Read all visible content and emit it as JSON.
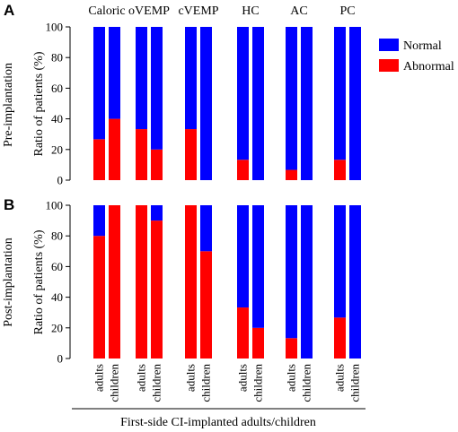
{
  "figure": {
    "panel_letters": [
      "A",
      "B"
    ],
    "xlabel": "First-side CI-implanted adults/children",
    "legend": [
      {
        "label": "Normal",
        "color": "#0000ff"
      },
      {
        "label": "Abnormal",
        "color": "#ff0000"
      }
    ]
  },
  "chart_data": [
    {
      "type": "bar",
      "stacked": true,
      "panel": "A",
      "row_label": "Pre-implantation",
      "ylabel": "Ratio of patients (%)",
      "ylim": [
        0,
        100
      ],
      "yticks": [
        0,
        20,
        40,
        60,
        80,
        100
      ],
      "groups": [
        "Caloric",
        "oVEMP",
        "cVEMP",
        "HC",
        "AC",
        "PC"
      ],
      "subcategories": [
        "adults",
        "children"
      ],
      "series": [
        {
          "name": "Abnormal",
          "color": "#ff0000",
          "values": [
            [
              26.7,
              40
            ],
            [
              33.3,
              20
            ],
            [
              33.3,
              0
            ],
            [
              13.3,
              0
            ],
            [
              6.7,
              0
            ],
            [
              13.3,
              0
            ]
          ]
        },
        {
          "name": "Normal",
          "color": "#0000ff",
          "values": [
            [
              73.3,
              60
            ],
            [
              66.7,
              80
            ],
            [
              66.7,
              100
            ],
            [
              86.7,
              100
            ],
            [
              93.3,
              100
            ],
            [
              86.7,
              100
            ]
          ]
        }
      ],
      "grid": false,
      "legend_position": "right"
    },
    {
      "type": "bar",
      "stacked": true,
      "panel": "B",
      "row_label": "Post-implantation",
      "ylabel": "Ratio of patients (%)",
      "ylim": [
        0,
        100
      ],
      "yticks": [
        0,
        20,
        40,
        60,
        80,
        100
      ],
      "groups": [
        "Caloric",
        "oVEMP",
        "cVEMP",
        "HC",
        "AC",
        "PC"
      ],
      "subcategories": [
        "adults",
        "children"
      ],
      "series": [
        {
          "name": "Abnormal",
          "color": "#ff0000",
          "values": [
            [
              80,
              100
            ],
            [
              100,
              90
            ],
            [
              100,
              70
            ],
            [
              33.3,
              20
            ],
            [
              13.3,
              0
            ],
            [
              26.7,
              0
            ]
          ]
        },
        {
          "name": "Normal",
          "color": "#0000ff",
          "values": [
            [
              20,
              0
            ],
            [
              0,
              10
            ],
            [
              0,
              30
            ],
            [
              66.7,
              80
            ],
            [
              86.7,
              100
            ],
            [
              73.3,
              100
            ]
          ]
        }
      ],
      "grid": false
    }
  ]
}
